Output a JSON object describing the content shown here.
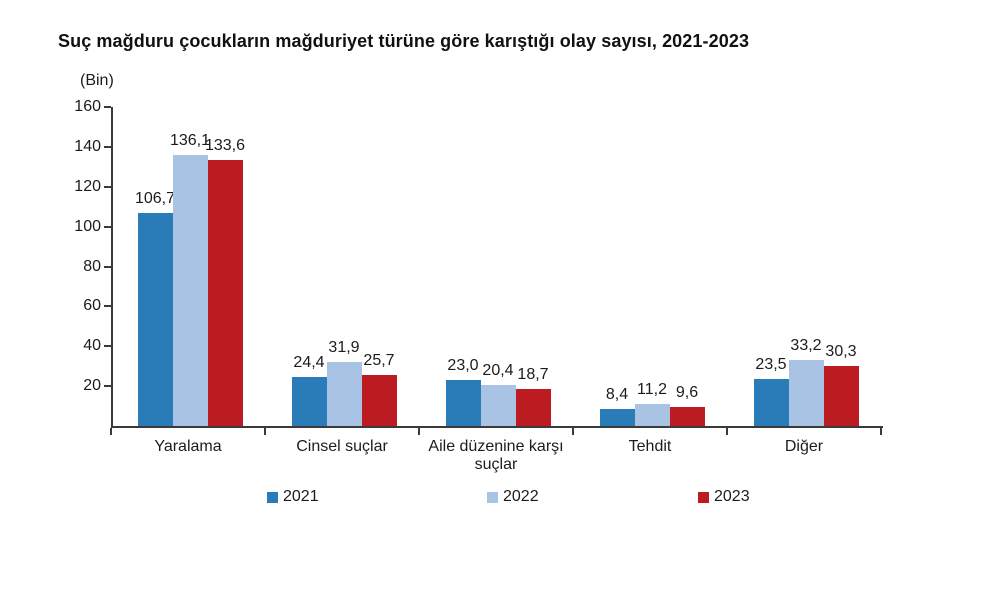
{
  "chart": {
    "title": "Suç mağduru çocukların mağduriyet türüne göre karıştığı olay sayısı, 2021-2023",
    "unit_label": "(Bin)"
  },
  "chart_data": {
    "type": "bar",
    "title": "Suç mağduru çocukların mağduriyet türüne göre karıştığı olay sayısı, 2021-2023",
    "ylabel": "(Bin)",
    "xlabel": "",
    "categories": [
      "Yaralama",
      "Cinsel suçlar",
      "Aile düzenine karşı suçlar",
      "Tehdit",
      "Diğer"
    ],
    "series": [
      {
        "name": "2021",
        "color": "#2a7cb9",
        "values": [
          106.7,
          24.4,
          23.0,
          8.4,
          23.5
        ],
        "labels": [
          "106,7",
          "24,4",
          "23,0",
          "8,4",
          "23,5"
        ]
      },
      {
        "name": "2022",
        "color": "#a9c3e4",
        "values": [
          136.1,
          31.9,
          20.4,
          11.2,
          33.2
        ],
        "labels": [
          "136,1",
          "31,9",
          "20,4",
          "11,2",
          "33,2"
        ]
      },
      {
        "name": "2023",
        "color": "#bb1b21",
        "values": [
          133.6,
          25.7,
          18.7,
          9.6,
          30.3
        ],
        "labels": [
          "133,6",
          "25,7",
          "18,7",
          "9,6",
          "30,3"
        ]
      }
    ],
    "ylim": [
      0,
      160
    ],
    "yticks": [
      20,
      40,
      60,
      80,
      100,
      120,
      140,
      160
    ],
    "grid": false,
    "legend_position": "bottom",
    "axis_color": "#3a3a3a"
  }
}
